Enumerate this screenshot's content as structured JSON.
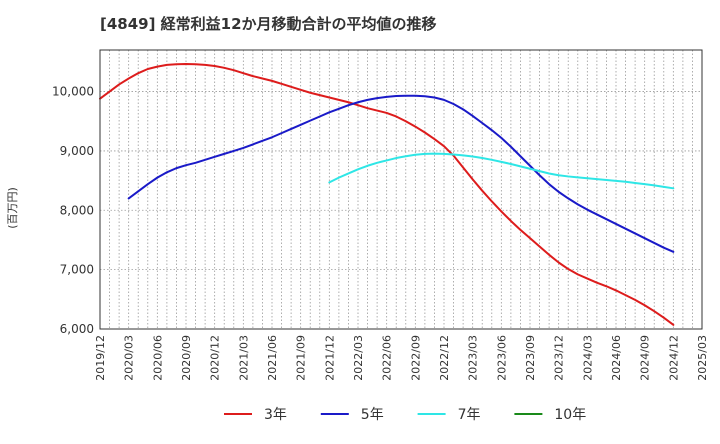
{
  "chart_data": {
    "type": "line",
    "title": "[4849]  経常利益12か月移動合計の平均値の推移",
    "xlabel": "",
    "ylabel": "(百万円)",
    "ylim": [
      6000,
      10700
    ],
    "yticks": [
      6000,
      7000,
      8000,
      9000,
      10000
    ],
    "ytick_labels": [
      "6,000",
      "7,000",
      "8,000",
      "9,000",
      "10,000"
    ],
    "xticks": [
      "2019/12",
      "2020/03",
      "2020/06",
      "2020/09",
      "2020/12",
      "2021/03",
      "2021/06",
      "2021/09",
      "2021/12",
      "2022/03",
      "2022/06",
      "2022/09",
      "2022/12",
      "2023/03",
      "2023/06",
      "2023/09",
      "2023/12",
      "2024/03",
      "2024/06",
      "2024/09",
      "2024/12",
      "2025/03"
    ],
    "grid": true,
    "legend_position": "bottom",
    "series": [
      {
        "name": "3年",
        "color": "#dd1c1c",
        "points": [
          [
            "2019/12",
            9880
          ],
          [
            "2020/01",
            10000
          ],
          [
            "2020/02",
            10120
          ],
          [
            "2020/03",
            10220
          ],
          [
            "2020/04",
            10310
          ],
          [
            "2020/05",
            10380
          ],
          [
            "2020/06",
            10420
          ],
          [
            "2020/07",
            10450
          ],
          [
            "2020/08",
            10460
          ],
          [
            "2020/09",
            10465
          ],
          [
            "2020/10",
            10460
          ],
          [
            "2020/11",
            10450
          ],
          [
            "2020/12",
            10430
          ],
          [
            "2021/01",
            10400
          ],
          [
            "2021/02",
            10360
          ],
          [
            "2021/03",
            10310
          ],
          [
            "2021/04",
            10260
          ],
          [
            "2021/05",
            10220
          ],
          [
            "2021/06",
            10180
          ],
          [
            "2021/07",
            10130
          ],
          [
            "2021/08",
            10080
          ],
          [
            "2021/09",
            10030
          ],
          [
            "2021/10",
            9980
          ],
          [
            "2021/11",
            9940
          ],
          [
            "2021/12",
            9900
          ],
          [
            "2022/01",
            9860
          ],
          [
            "2022/02",
            9820
          ],
          [
            "2022/03",
            9770
          ],
          [
            "2022/04",
            9720
          ],
          [
            "2022/05",
            9680
          ],
          [
            "2022/06",
            9640
          ],
          [
            "2022/07",
            9580
          ],
          [
            "2022/08",
            9500
          ],
          [
            "2022/09",
            9410
          ],
          [
            "2022/10",
            9310
          ],
          [
            "2022/11",
            9200
          ],
          [
            "2022/12",
            9080
          ],
          [
            "2023/01",
            8920
          ],
          [
            "2023/02",
            8720
          ],
          [
            "2023/03",
            8520
          ],
          [
            "2023/04",
            8330
          ],
          [
            "2023/05",
            8150
          ],
          [
            "2023/06",
            7980
          ],
          [
            "2023/07",
            7820
          ],
          [
            "2023/08",
            7670
          ],
          [
            "2023/09",
            7530
          ],
          [
            "2023/10",
            7390
          ],
          [
            "2023/11",
            7250
          ],
          [
            "2023/12",
            7120
          ],
          [
            "2024/01",
            7010
          ],
          [
            "2024/02",
            6920
          ],
          [
            "2024/03",
            6850
          ],
          [
            "2024/04",
            6780
          ],
          [
            "2024/05",
            6720
          ],
          [
            "2024/06",
            6650
          ],
          [
            "2024/07",
            6570
          ],
          [
            "2024/08",
            6490
          ],
          [
            "2024/09",
            6400
          ],
          [
            "2024/10",
            6300
          ],
          [
            "2024/11",
            6190
          ],
          [
            "2024/12",
            6070
          ]
        ]
      },
      {
        "name": "5年",
        "color": "#1a1ac8",
        "points": [
          [
            "2020/03",
            8200
          ],
          [
            "2020/04",
            8320
          ],
          [
            "2020/05",
            8440
          ],
          [
            "2020/06",
            8550
          ],
          [
            "2020/07",
            8640
          ],
          [
            "2020/08",
            8710
          ],
          [
            "2020/09",
            8760
          ],
          [
            "2020/10",
            8800
          ],
          [
            "2020/11",
            8850
          ],
          [
            "2020/12",
            8900
          ],
          [
            "2021/01",
            8950
          ],
          [
            "2021/02",
            9000
          ],
          [
            "2021/03",
            9050
          ],
          [
            "2021/04",
            9110
          ],
          [
            "2021/05",
            9170
          ],
          [
            "2021/06",
            9230
          ],
          [
            "2021/07",
            9300
          ],
          [
            "2021/08",
            9370
          ],
          [
            "2021/09",
            9440
          ],
          [
            "2021/10",
            9510
          ],
          [
            "2021/11",
            9580
          ],
          [
            "2021/12",
            9650
          ],
          [
            "2022/01",
            9710
          ],
          [
            "2022/02",
            9770
          ],
          [
            "2022/03",
            9820
          ],
          [
            "2022/04",
            9860
          ],
          [
            "2022/05",
            9890
          ],
          [
            "2022/06",
            9910
          ],
          [
            "2022/07",
            9925
          ],
          [
            "2022/08",
            9930
          ],
          [
            "2022/09",
            9930
          ],
          [
            "2022/10",
            9920
          ],
          [
            "2022/11",
            9900
          ],
          [
            "2022/12",
            9860
          ],
          [
            "2023/01",
            9790
          ],
          [
            "2023/02",
            9700
          ],
          [
            "2023/03",
            9590
          ],
          [
            "2023/04",
            9470
          ],
          [
            "2023/05",
            9350
          ],
          [
            "2023/06",
            9220
          ],
          [
            "2023/07",
            9070
          ],
          [
            "2023/08",
            8910
          ],
          [
            "2023/09",
            8750
          ],
          [
            "2023/10",
            8590
          ],
          [
            "2023/11",
            8440
          ],
          [
            "2023/12",
            8310
          ],
          [
            "2024/01",
            8200
          ],
          [
            "2024/02",
            8100
          ],
          [
            "2024/03",
            8010
          ],
          [
            "2024/04",
            7930
          ],
          [
            "2024/05",
            7850
          ],
          [
            "2024/06",
            7770
          ],
          [
            "2024/07",
            7690
          ],
          [
            "2024/08",
            7610
          ],
          [
            "2024/09",
            7530
          ],
          [
            "2024/10",
            7450
          ],
          [
            "2024/11",
            7370
          ],
          [
            "2024/12",
            7300
          ]
        ]
      },
      {
        "name": "7年",
        "color": "#2ee6e6",
        "points": [
          [
            "2021/12",
            8470
          ],
          [
            "2022/01",
            8550
          ],
          [
            "2022/02",
            8620
          ],
          [
            "2022/03",
            8690
          ],
          [
            "2022/04",
            8750
          ],
          [
            "2022/05",
            8800
          ],
          [
            "2022/06",
            8840
          ],
          [
            "2022/07",
            8880
          ],
          [
            "2022/08",
            8910
          ],
          [
            "2022/09",
            8935
          ],
          [
            "2022/10",
            8950
          ],
          [
            "2022/11",
            8955
          ],
          [
            "2022/12",
            8950
          ],
          [
            "2023/01",
            8940
          ],
          [
            "2023/02",
            8925
          ],
          [
            "2023/03",
            8905
          ],
          [
            "2023/04",
            8880
          ],
          [
            "2023/05",
            8850
          ],
          [
            "2023/06",
            8815
          ],
          [
            "2023/07",
            8780
          ],
          [
            "2023/08",
            8740
          ],
          [
            "2023/09",
            8700
          ],
          [
            "2023/10",
            8660
          ],
          [
            "2023/11",
            8620
          ],
          [
            "2023/12",
            8590
          ],
          [
            "2024/01",
            8570
          ],
          [
            "2024/02",
            8555
          ],
          [
            "2024/03",
            8540
          ],
          [
            "2024/04",
            8525
          ],
          [
            "2024/05",
            8510
          ],
          [
            "2024/06",
            8495
          ],
          [
            "2024/07",
            8480
          ],
          [
            "2024/08",
            8460
          ],
          [
            "2024/09",
            8440
          ],
          [
            "2024/10",
            8420
          ],
          [
            "2024/11",
            8395
          ],
          [
            "2024/12",
            8370
          ]
        ]
      },
      {
        "name": "10年",
        "color": "#1a8a1a",
        "points": []
      }
    ]
  }
}
